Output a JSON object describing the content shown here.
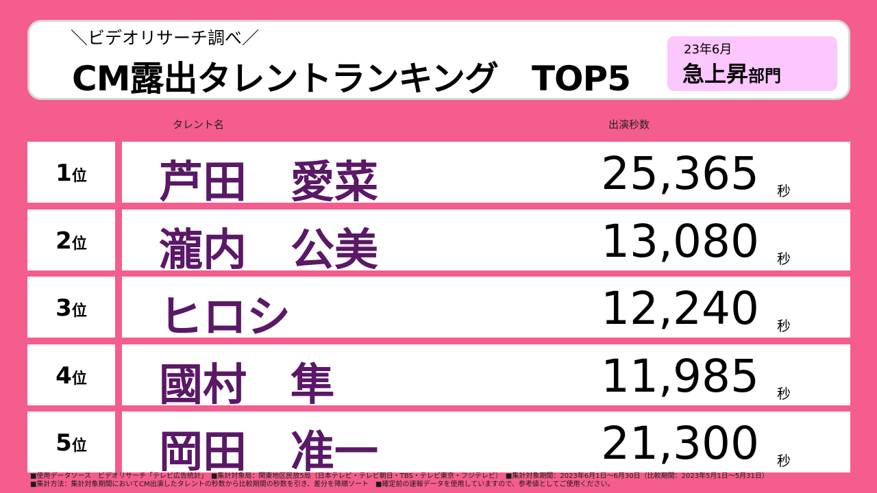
{
  "header": {
    "subtitle": "＼ビデオリサーチ調べ／",
    "title": "CM露出タレントランキング　TOP5",
    "badge": {
      "date": "23年6月",
      "category": "急上昇",
      "category_suffix": "部門"
    }
  },
  "columns": {
    "name": "タレント名",
    "seconds": "出演秒数"
  },
  "rank_unit": "位",
  "seconds_unit": "秒",
  "ranking": [
    {
      "rank": "1",
      "name": "芦田　愛菜",
      "seconds": "25,365"
    },
    {
      "rank": "2",
      "name": "瀧内　公美",
      "seconds": "13,080"
    },
    {
      "rank": "3",
      "name": "ヒロシ",
      "seconds": "12,240"
    },
    {
      "rank": "4",
      "name": "國村　隼",
      "seconds": "11,985"
    },
    {
      "rank": "5",
      "name": "岡田　准一",
      "seconds": "21,300"
    }
  ],
  "footer": {
    "line1": "■使用データソース　ビデオリサーチ「テレビ広告統計」　■集計対象局：関東地区民放5局（日本テレビ・テレビ朝日・TBS・テレビ東京・フジテレビ）　■集計対象期間：2023年6月1日～6月30日（比較期間：2023年5月1日～5月31日）",
    "line2": "■集計方法：集計対象期間においてCM出演したタレントの秒数から比較期間の秒数を引き、差分を降順ソート　■確定前の速報データを使用していますので、参考値としてご使用ください。"
  }
}
